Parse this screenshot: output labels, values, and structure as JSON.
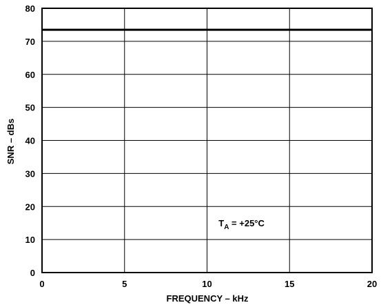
{
  "chart_data": {
    "type": "line",
    "title": "",
    "xlabel": "FREQUENCY – kHz",
    "ylabel": "SNR – dBs",
    "xlim": [
      0,
      20
    ],
    "ylim": [
      0,
      80
    ],
    "x_ticks": [
      0,
      5,
      10,
      15,
      20
    ],
    "y_ticks": [
      0,
      10,
      20,
      30,
      40,
      50,
      60,
      70,
      80
    ],
    "grid": true,
    "series": [
      {
        "x": [
          0,
          20
        ],
        "y": [
          73.5,
          73.5
        ],
        "color": "#000000"
      }
    ],
    "annotation": {
      "base": "T",
      "sub": "A",
      "rest": " = +25°C",
      "x": 10.7,
      "y": 14
    }
  }
}
